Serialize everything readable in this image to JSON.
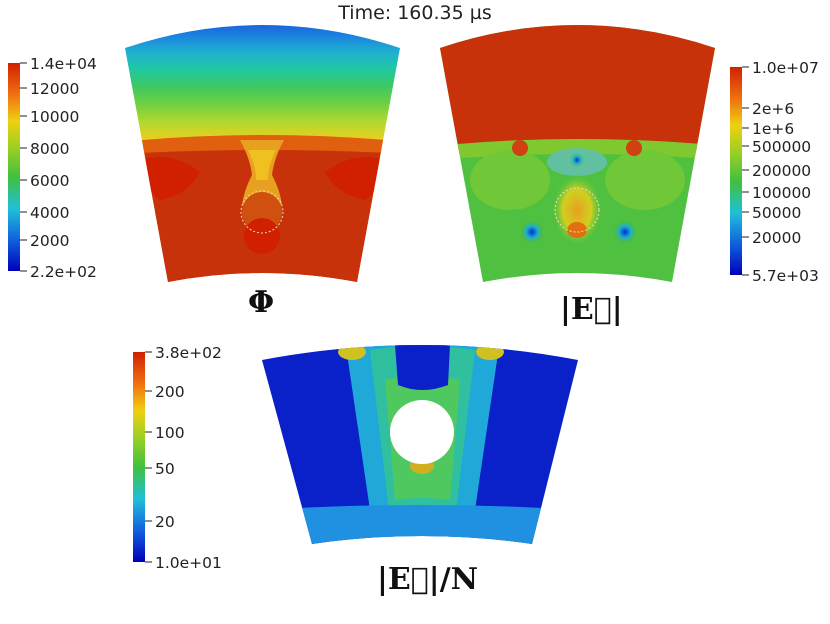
{
  "title": "Time: 160.35 µs",
  "plots": [
    {
      "label": "Φ",
      "colorbar": {
        "min_label": "2.2e+02",
        "max_label": "1.4e+04",
        "ticks": [
          "12000",
          "10000",
          "8000",
          "6000",
          "4000",
          "2000"
        ]
      }
    },
    {
      "label": "|E⃗|",
      "colorbar": {
        "min_label": "5.7e+03",
        "max_label": "1.0e+07",
        "ticks": [
          "2e+6",
          "1e+6",
          "500000",
          "200000",
          "100000",
          "50000",
          "20000"
        ]
      }
    },
    {
      "label": "|E⃗|/N",
      "colorbar": {
        "min_label": "1.0e+01",
        "max_label": "3.8e+02",
        "ticks": [
          "200",
          "100",
          "50",
          "20"
        ]
      }
    }
  ],
  "colors": {
    "red": "#c8320a",
    "orange": "#f0a020",
    "yellow": "#e8d020",
    "green": "#40b840",
    "cyan": "#20b8c8",
    "blue": "#1040c8",
    "navy": "#0010b0"
  }
}
